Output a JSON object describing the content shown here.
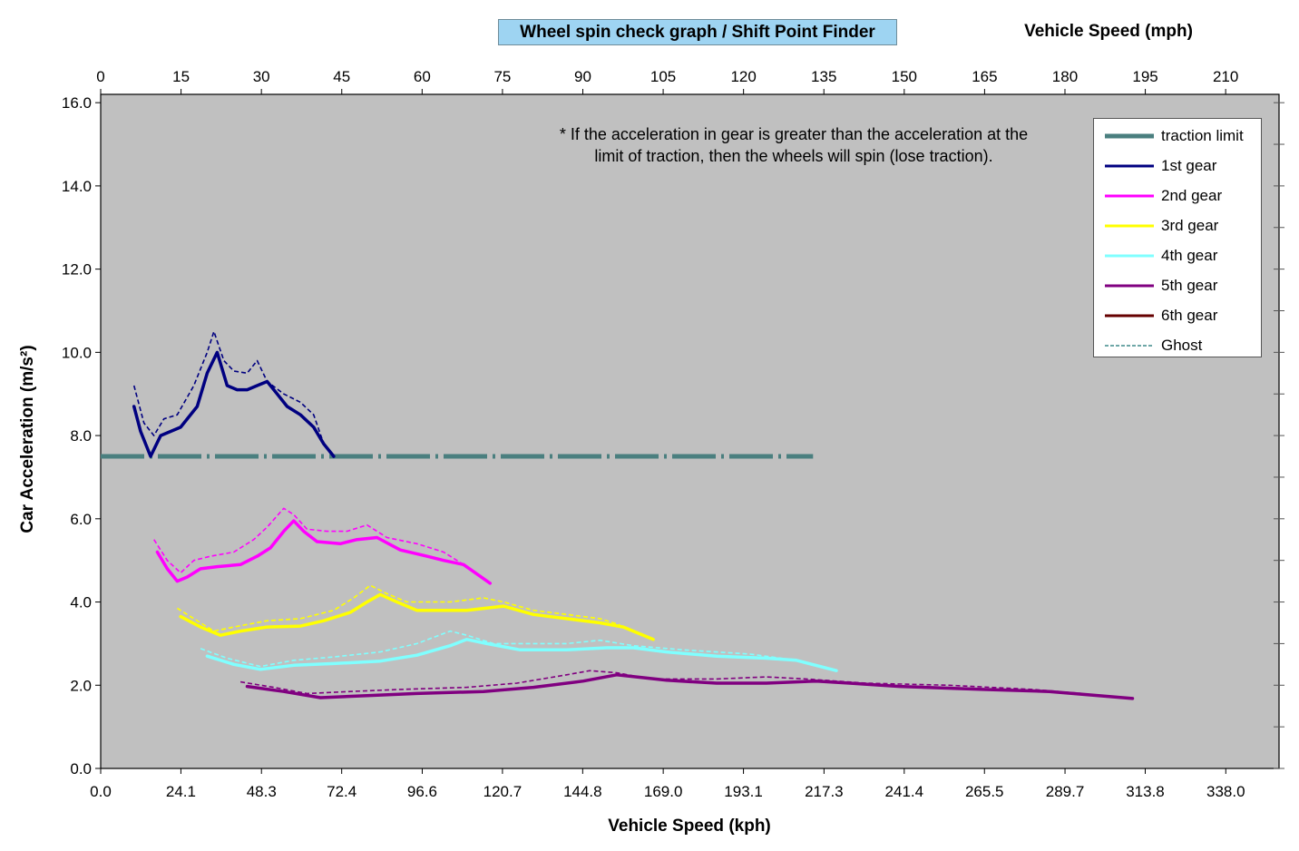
{
  "chart_data": {
    "type": "line",
    "title": "Wheel spin check graph / Shift Point Finder",
    "xlabel": "Vehicle Speed (kph)",
    "x2label": "Vehicle Speed (mph)",
    "ylabel": "Car Acceleration (m/s²)",
    "note_lines": [
      "* If the acceleration in gear is greater than the acceleration at the",
      "limit of traction, then the wheels will spin (lose traction)."
    ],
    "xlim": [
      0,
      354
    ],
    "ylim": [
      0,
      16.2
    ],
    "x_ticks": [
      0,
      24.1,
      48.3,
      72.4,
      96.6,
      120.7,
      144.8,
      169.0,
      193.1,
      217.3,
      241.4,
      265.5,
      289.7,
      313.8,
      338.0
    ],
    "x_tick_labels": [
      "0.0",
      "24.1",
      "48.3",
      "72.4",
      "96.6",
      "120.7",
      "144.8",
      "169.0",
      "193.1",
      "217.3",
      "241.4",
      "265.5",
      "289.7",
      "313.8",
      "338.0"
    ],
    "x2_ticks_mph": [
      0,
      15,
      30,
      45,
      60,
      75,
      90,
      105,
      120,
      135,
      150,
      165,
      180,
      195,
      210
    ],
    "y_ticks": [
      0,
      2,
      4,
      6,
      8,
      10,
      12,
      14,
      16
    ],
    "y_tick_labels": [
      "0.0",
      "2.0",
      "4.0",
      "6.0",
      "8.0",
      "10.0",
      "12.0",
      "14.0",
      "16.0"
    ],
    "grid": false,
    "legend_position": "top-right",
    "plot_background": "#c0c0c0",
    "series": [
      {
        "name": "traction limit",
        "color": "#4a7f7f",
        "style": "dash-dot-thick",
        "points": [
          [
            0,
            7.5
          ],
          [
            214,
            7.5
          ]
        ]
      },
      {
        "name": "1st gear",
        "color": "#000080",
        "style": "solid",
        "points": [
          [
            10,
            8.7
          ],
          [
            12,
            8.1
          ],
          [
            15,
            7.5
          ],
          [
            18,
            8.0
          ],
          [
            21,
            8.1
          ],
          [
            24,
            8.2
          ],
          [
            29,
            8.7
          ],
          [
            32,
            9.5
          ],
          [
            35,
            10.0
          ],
          [
            38,
            9.2
          ],
          [
            41,
            9.1
          ],
          [
            44,
            9.1
          ],
          [
            47,
            9.2
          ],
          [
            50,
            9.3
          ],
          [
            53,
            9.0
          ],
          [
            56,
            8.7
          ],
          [
            60,
            8.5
          ],
          [
            64,
            8.2
          ],
          [
            67,
            7.8
          ],
          [
            70,
            7.5
          ]
        ]
      },
      {
        "name": "2nd gear",
        "color": "#ff00ff",
        "style": "solid",
        "points": [
          [
            17,
            5.2
          ],
          [
            20,
            4.8
          ],
          [
            23,
            4.5
          ],
          [
            26,
            4.6
          ],
          [
            30,
            4.8
          ],
          [
            35,
            4.85
          ],
          [
            42,
            4.9
          ],
          [
            47,
            5.1
          ],
          [
            51,
            5.3
          ],
          [
            55,
            5.7
          ],
          [
            58,
            5.95
          ],
          [
            61,
            5.7
          ],
          [
            65,
            5.45
          ],
          [
            72,
            5.4
          ],
          [
            77,
            5.5
          ],
          [
            83,
            5.55
          ],
          [
            90,
            5.25
          ],
          [
            98,
            5.1
          ],
          [
            103,
            5.0
          ],
          [
            109,
            4.9
          ],
          [
            117,
            4.45
          ]
        ]
      },
      {
        "name": "3rd gear",
        "color": "#ffff00",
        "style": "solid",
        "points": [
          [
            24,
            3.65
          ],
          [
            30,
            3.4
          ],
          [
            36,
            3.2
          ],
          [
            42,
            3.3
          ],
          [
            50,
            3.4
          ],
          [
            60,
            3.42
          ],
          [
            67,
            3.55
          ],
          [
            75,
            3.75
          ],
          [
            80,
            4.0
          ],
          [
            84,
            4.18
          ],
          [
            89,
            4.0
          ],
          [
            95,
            3.8
          ],
          [
            110,
            3.8
          ],
          [
            121,
            3.9
          ],
          [
            130,
            3.7
          ],
          [
            140,
            3.6
          ],
          [
            150,
            3.5
          ],
          [
            157,
            3.4
          ],
          [
            166,
            3.1
          ]
        ]
      },
      {
        "name": "4th gear",
        "color": "#80ffff",
        "style": "solid",
        "points": [
          [
            32,
            2.7
          ],
          [
            40,
            2.5
          ],
          [
            48,
            2.38
          ],
          [
            58,
            2.48
          ],
          [
            70,
            2.52
          ],
          [
            84,
            2.58
          ],
          [
            95,
            2.72
          ],
          [
            105,
            2.95
          ],
          [
            110,
            3.1
          ],
          [
            116,
            3.0
          ],
          [
            126,
            2.85
          ],
          [
            140,
            2.85
          ],
          [
            152,
            2.9
          ],
          [
            160,
            2.9
          ],
          [
            170,
            2.8
          ],
          [
            185,
            2.7
          ],
          [
            200,
            2.65
          ],
          [
            209,
            2.6
          ],
          [
            221,
            2.35
          ]
        ]
      },
      {
        "name": "5th gear",
        "color": "#800080",
        "style": "solid",
        "points": [
          [
            44,
            1.97
          ],
          [
            55,
            1.85
          ],
          [
            66,
            1.7
          ],
          [
            80,
            1.75
          ],
          [
            95,
            1.8
          ],
          [
            115,
            1.85
          ],
          [
            130,
            1.95
          ],
          [
            145,
            2.1
          ],
          [
            155,
            2.25
          ],
          [
            170,
            2.12
          ],
          [
            185,
            2.05
          ],
          [
            200,
            2.05
          ],
          [
            215,
            2.1
          ],
          [
            225,
            2.05
          ],
          [
            240,
            1.97
          ],
          [
            265,
            1.9
          ],
          [
            285,
            1.85
          ],
          [
            310,
            1.68
          ]
        ]
      },
      {
        "name": "6th gear",
        "color": "#660000",
        "style": "solid",
        "points": []
      },
      {
        "name": "Ghost",
        "color": "#3f8a8a",
        "style": "dashed",
        "legend_only": true,
        "points": []
      }
    ],
    "ghost_series": [
      {
        "of": "1st gear",
        "color": "#000080",
        "points": [
          [
            10,
            9.2
          ],
          [
            13,
            8.3
          ],
          [
            16,
            8.0
          ],
          [
            19,
            8.4
          ],
          [
            23,
            8.5
          ],
          [
            28,
            9.2
          ],
          [
            32,
            10.0
          ],
          [
            34,
            10.5
          ],
          [
            37,
            9.8
          ],
          [
            40,
            9.55
          ],
          [
            44,
            9.5
          ],
          [
            47,
            9.8
          ],
          [
            50,
            9.3
          ],
          [
            55,
            9.0
          ],
          [
            60,
            8.8
          ],
          [
            64,
            8.5
          ],
          [
            67,
            7.8
          ],
          [
            69,
            7.6
          ]
        ]
      },
      {
        "of": "2nd gear",
        "color": "#ff00ff",
        "points": [
          [
            16,
            5.5
          ],
          [
            20,
            5.0
          ],
          [
            24,
            4.7
          ],
          [
            28,
            5.0
          ],
          [
            33,
            5.1
          ],
          [
            40,
            5.2
          ],
          [
            46,
            5.5
          ],
          [
            50,
            5.8
          ],
          [
            55,
            6.25
          ],
          [
            58,
            6.1
          ],
          [
            62,
            5.75
          ],
          [
            68,
            5.7
          ],
          [
            74,
            5.7
          ],
          [
            80,
            5.85
          ],
          [
            86,
            5.55
          ],
          [
            95,
            5.4
          ],
          [
            103,
            5.2
          ],
          [
            109,
            4.9
          ],
          [
            114,
            4.6
          ]
        ]
      },
      {
        "name_hidden": true,
        "of": "3rd gear",
        "color": "#ffff00",
        "points": [
          [
            23,
            3.85
          ],
          [
            28,
            3.6
          ],
          [
            34,
            3.3
          ],
          [
            40,
            3.4
          ],
          [
            50,
            3.55
          ],
          [
            60,
            3.6
          ],
          [
            70,
            3.8
          ],
          [
            76,
            4.1
          ],
          [
            81,
            4.4
          ],
          [
            86,
            4.2
          ],
          [
            92,
            4.0
          ],
          [
            105,
            4.0
          ],
          [
            115,
            4.1
          ],
          [
            121,
            4.0
          ],
          [
            130,
            3.8
          ],
          [
            140,
            3.7
          ],
          [
            150,
            3.6
          ],
          [
            156,
            3.45
          ]
        ]
      },
      {
        "of": "4th gear",
        "color": "#80ffff",
        "points": [
          [
            30,
            2.88
          ],
          [
            38,
            2.65
          ],
          [
            48,
            2.45
          ],
          [
            58,
            2.6
          ],
          [
            70,
            2.68
          ],
          [
            84,
            2.8
          ],
          [
            95,
            3.0
          ],
          [
            105,
            3.3
          ],
          [
            110,
            3.2
          ],
          [
            118,
            3.0
          ],
          [
            128,
            3.0
          ],
          [
            140,
            3.0
          ],
          [
            150,
            3.08
          ],
          [
            160,
            2.95
          ],
          [
            175,
            2.85
          ],
          [
            195,
            2.75
          ],
          [
            209,
            2.6
          ]
        ]
      },
      {
        "of": "5th gear",
        "color": "#800080",
        "points": [
          [
            42,
            2.08
          ],
          [
            52,
            1.95
          ],
          [
            62,
            1.8
          ],
          [
            75,
            1.85
          ],
          [
            90,
            1.9
          ],
          [
            110,
            1.95
          ],
          [
            125,
            2.05
          ],
          [
            140,
            2.25
          ],
          [
            147,
            2.35
          ],
          [
            155,
            2.3
          ],
          [
            165,
            2.15
          ],
          [
            185,
            2.15
          ],
          [
            200,
            2.2
          ],
          [
            212,
            2.15
          ],
          [
            230,
            2.05
          ],
          [
            255,
            2.0
          ],
          [
            280,
            1.9
          ],
          [
            295,
            1.8
          ]
        ]
      }
    ]
  }
}
